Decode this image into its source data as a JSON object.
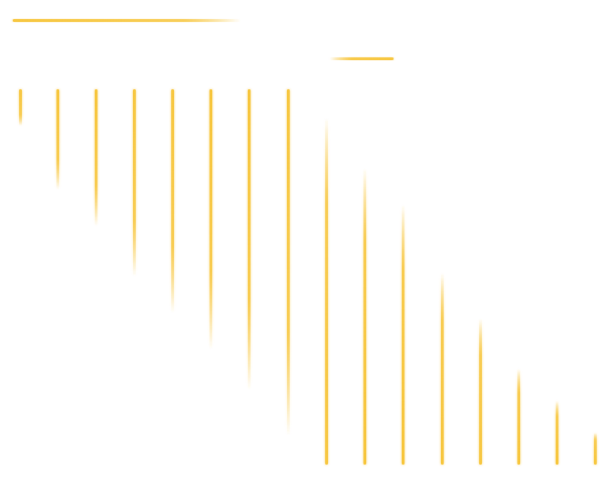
{
  "background_color": "#ffffff",
  "accent_color": "#f7c63e",
  "glow_color": "#fde9a8",
  "decorations": {
    "horizontal_streaks": 2,
    "vertical_streaks": 16,
    "description_free": true
  }
}
